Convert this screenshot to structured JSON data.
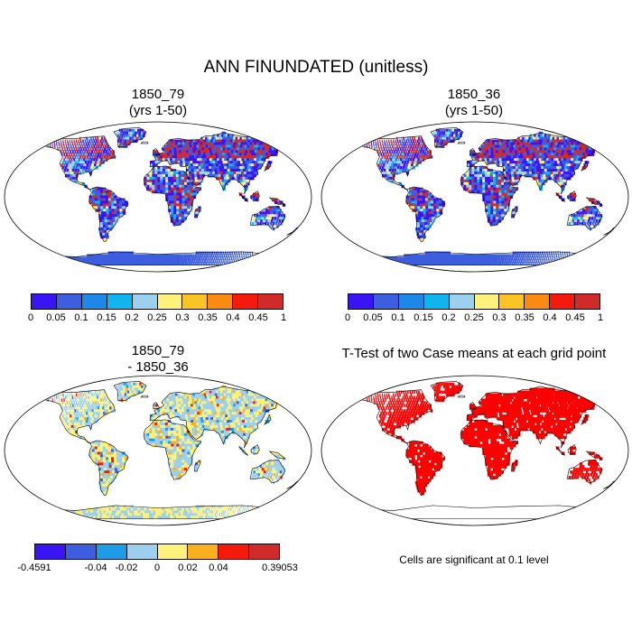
{
  "title": "ANN FINUNDATED (unitless)",
  "panels": [
    {
      "title_line1": "1850_79",
      "title_line2": "(yrs 1-50)"
    },
    {
      "title_line1": "1850_36",
      "title_line2": "(yrs 1-50)"
    },
    {
      "title_line1": "1850_79",
      "title_line2": "- 1850_36"
    },
    {
      "title_line1": "T-Test of two Case means at each grid point"
    }
  ],
  "colorbar_abs": {
    "labels": [
      "0",
      "0.05",
      "0.1",
      "0.15",
      "0.2",
      "0.25",
      "0.3",
      "0.35",
      "0.4",
      "0.45",
      "1"
    ],
    "colors": [
      "#3b14f5",
      "#3d5ede",
      "#1e88e8",
      "#12b4ee",
      "#9cd0ee",
      "#fff27a",
      "#fac424",
      "#fa8a14",
      "#f51a0c",
      "#d12a2a"
    ]
  },
  "colorbar_diff": {
    "labels": [
      "-0.4591",
      "-0.04",
      "-0.02",
      "0",
      "0.02",
      "0.04",
      "0.39053"
    ],
    "colors": [
      "#3b14f5",
      "#3d5ede",
      "#1e9ce8",
      "#9cd0ee",
      "#fff27a",
      "#fab01e",
      "#f51a0c",
      "#d12a2a"
    ]
  },
  "significance_note": "Cells are significant at 0.1 level",
  "colors": {
    "significant": "#ff0000",
    "coast": "#000000"
  }
}
